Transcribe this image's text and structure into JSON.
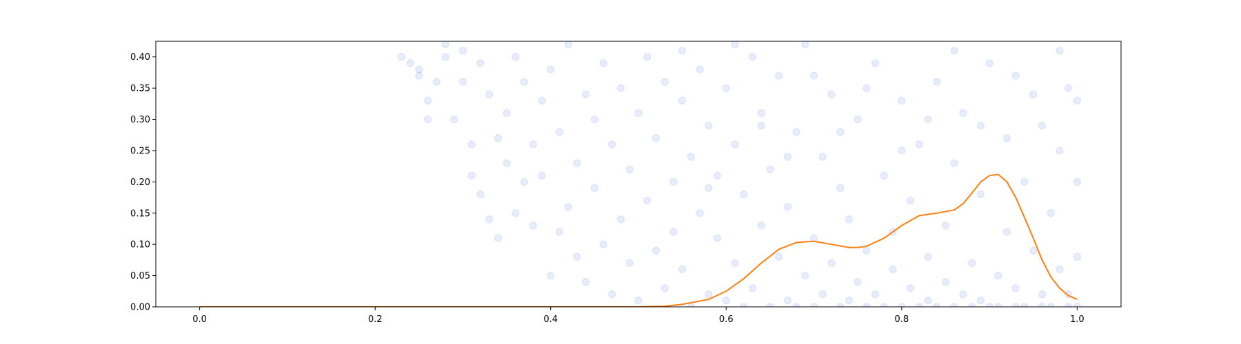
{
  "chart_data": {
    "type": "scatter",
    "title": "",
    "xlabel": "",
    "ylabel": "",
    "xlim": [
      -0.05,
      1.05
    ],
    "ylim": [
      0.0,
      0.425
    ],
    "grid": false,
    "x_ticks": [
      "0.0",
      "0.2",
      "0.4",
      "0.6",
      "0.8",
      "1.0"
    ],
    "y_ticks": [
      "0.00",
      "0.05",
      "0.10",
      "0.15",
      "0.20",
      "0.25",
      "0.30",
      "0.35",
      "0.40"
    ],
    "colors": {
      "points": "#4169e1",
      "line": "#ff7f0e",
      "axes": "#000000"
    },
    "series": [
      {
        "type": "scatter",
        "alpha": 0.12,
        "points": [
          [
            0.23,
            0.4
          ],
          [
            0.24,
            0.39
          ],
          [
            0.25,
            0.38
          ],
          [
            0.25,
            0.37
          ],
          [
            0.26,
            0.33
          ],
          [
            0.26,
            0.3
          ],
          [
            0.27,
            0.36
          ],
          [
            0.28,
            0.4
          ],
          [
            0.28,
            0.42
          ],
          [
            0.29,
            0.3
          ],
          [
            0.3,
            0.36
          ],
          [
            0.3,
            0.41
          ],
          [
            0.31,
            0.26
          ],
          [
            0.31,
            0.21
          ],
          [
            0.32,
            0.39
          ],
          [
            0.32,
            0.18
          ],
          [
            0.33,
            0.14
          ],
          [
            0.33,
            0.34
          ],
          [
            0.34,
            0.27
          ],
          [
            0.34,
            0.11
          ],
          [
            0.35,
            0.31
          ],
          [
            0.35,
            0.23
          ],
          [
            0.36,
            0.4
          ],
          [
            0.36,
            0.15
          ],
          [
            0.37,
            0.2
          ],
          [
            0.37,
            0.36
          ],
          [
            0.38,
            0.26
          ],
          [
            0.38,
            0.13
          ],
          [
            0.39,
            0.33
          ],
          [
            0.39,
            0.21
          ],
          [
            0.4,
            0.38
          ],
          [
            0.4,
            0.05
          ],
          [
            0.41,
            0.12
          ],
          [
            0.41,
            0.28
          ],
          [
            0.42,
            0.16
          ],
          [
            0.42,
            0.42
          ],
          [
            0.43,
            0.23
          ],
          [
            0.43,
            0.08
          ],
          [
            0.44,
            0.34
          ],
          [
            0.44,
            0.04
          ],
          [
            0.45,
            0.19
          ],
          [
            0.45,
            0.3
          ],
          [
            0.46,
            0.1
          ],
          [
            0.46,
            0.39
          ],
          [
            0.47,
            0.26
          ],
          [
            0.47,
            0.02
          ],
          [
            0.48,
            0.14
          ],
          [
            0.48,
            0.35
          ],
          [
            0.49,
            0.22
          ],
          [
            0.49,
            0.07
          ],
          [
            0.5,
            0.31
          ],
          [
            0.5,
            0.01
          ],
          [
            0.51,
            0.17
          ],
          [
            0.51,
            0.4
          ],
          [
            0.52,
            0.09
          ],
          [
            0.52,
            0.27
          ],
          [
            0.53,
            0.03
          ],
          [
            0.53,
            0.36
          ],
          [
            0.54,
            0.2
          ],
          [
            0.54,
            0.12
          ],
          [
            0.55,
            0.33
          ],
          [
            0.55,
            0.06
          ],
          [
            0.56,
            0.24
          ],
          [
            0.56,
            0.0
          ],
          [
            0.57,
            0.15
          ],
          [
            0.57,
            0.38
          ],
          [
            0.58,
            0.02
          ],
          [
            0.58,
            0.29
          ],
          [
            0.59,
            0.11
          ],
          [
            0.59,
            0.21
          ],
          [
            0.6,
            0.35
          ],
          [
            0.6,
            0.01
          ],
          [
            0.61,
            0.07
          ],
          [
            0.61,
            0.26
          ],
          [
            0.62,
            0.0
          ],
          [
            0.62,
            0.18
          ],
          [
            0.63,
            0.4
          ],
          [
            0.63,
            0.03
          ],
          [
            0.64,
            0.13
          ],
          [
            0.64,
            0.31
          ],
          [
            0.65,
            0.0
          ],
          [
            0.65,
            0.22
          ],
          [
            0.66,
            0.08
          ],
          [
            0.66,
            0.37
          ],
          [
            0.67,
            0.01
          ],
          [
            0.67,
            0.16
          ],
          [
            0.68,
            0.28
          ],
          [
            0.68,
            0.0
          ],
          [
            0.69,
            0.05
          ],
          [
            0.69,
            0.42
          ],
          [
            0.7,
            0.11
          ],
          [
            0.7,
            0.0
          ],
          [
            0.71,
            0.24
          ],
          [
            0.71,
            0.02
          ],
          [
            0.72,
            0.34
          ],
          [
            0.72,
            0.07
          ],
          [
            0.73,
            0.0
          ],
          [
            0.73,
            0.19
          ],
          [
            0.74,
            0.14
          ],
          [
            0.74,
            0.01
          ],
          [
            0.75,
            0.3
          ],
          [
            0.75,
            0.04
          ],
          [
            0.76,
            0.0
          ],
          [
            0.76,
            0.09
          ],
          [
            0.77,
            0.39
          ],
          [
            0.77,
            0.02
          ],
          [
            0.78,
            0.21
          ],
          [
            0.78,
            0.0
          ],
          [
            0.79,
            0.12
          ],
          [
            0.79,
            0.06
          ],
          [
            0.8,
            0.33
          ],
          [
            0.8,
            0.0
          ],
          [
            0.81,
            0.03
          ],
          [
            0.81,
            0.17
          ],
          [
            0.82,
            0.0
          ],
          [
            0.82,
            0.26
          ],
          [
            0.83,
            0.08
          ],
          [
            0.83,
            0.01
          ],
          [
            0.84,
            0.36
          ],
          [
            0.84,
            0.0
          ],
          [
            0.85,
            0.13
          ],
          [
            0.85,
            0.04
          ],
          [
            0.86,
            0.0
          ],
          [
            0.86,
            0.23
          ],
          [
            0.87,
            0.02
          ],
          [
            0.87,
            0.31
          ],
          [
            0.88,
            0.0
          ],
          [
            0.88,
            0.07
          ],
          [
            0.89,
            0.18
          ],
          [
            0.89,
            0.01
          ],
          [
            0.9,
            0.0
          ],
          [
            0.9,
            0.39
          ],
          [
            0.91,
            0.05
          ],
          [
            0.91,
            0.0
          ],
          [
            0.92,
            0.12
          ],
          [
            0.92,
            0.27
          ],
          [
            0.93,
            0.0
          ],
          [
            0.93,
            0.03
          ],
          [
            0.94,
            0.2
          ],
          [
            0.94,
            0.0
          ],
          [
            0.95,
            0.09
          ],
          [
            0.95,
            0.34
          ],
          [
            0.96,
            0.0
          ],
          [
            0.96,
            0.02
          ],
          [
            0.97,
            0.15
          ],
          [
            0.97,
            0.0
          ],
          [
            0.98,
            0.06
          ],
          [
            0.98,
            0.25
          ],
          [
            0.99,
            0.0
          ],
          [
            0.99,
            0.02
          ],
          [
            1.0,
            0.33
          ],
          [
            1.0,
            0.08
          ],
          [
            1.0,
            0.0
          ],
          [
            1.0,
            0.2
          ],
          [
            0.99,
            0.35
          ],
          [
            0.98,
            0.41
          ],
          [
            0.96,
            0.29
          ],
          [
            0.93,
            0.37
          ],
          [
            0.89,
            0.29
          ],
          [
            0.86,
            0.41
          ],
          [
            0.83,
            0.3
          ],
          [
            0.8,
            0.25
          ],
          [
            0.76,
            0.35
          ],
          [
            0.73,
            0.28
          ],
          [
            0.7,
            0.37
          ],
          [
            0.67,
            0.24
          ],
          [
            0.64,
            0.29
          ],
          [
            0.61,
            0.42
          ],
          [
            0.58,
            0.19
          ],
          [
            0.55,
            0.41
          ]
        ]
      },
      {
        "type": "line",
        "x": [
          0.0,
          0.1,
          0.2,
          0.3,
          0.4,
          0.45,
          0.5,
          0.53,
          0.55,
          0.58,
          0.6,
          0.62,
          0.64,
          0.66,
          0.68,
          0.7,
          0.72,
          0.74,
          0.75,
          0.76,
          0.78,
          0.8,
          0.82,
          0.84,
          0.86,
          0.87,
          0.88,
          0.89,
          0.9,
          0.91,
          0.92,
          0.93,
          0.94,
          0.95,
          0.96,
          0.97,
          0.98,
          0.99,
          1.0
        ],
        "y": [
          0.0,
          0.0,
          0.0,
          0.0,
          0.0,
          0.0,
          0.0,
          0.001,
          0.004,
          0.012,
          0.025,
          0.045,
          0.07,
          0.092,
          0.103,
          0.105,
          0.1,
          0.095,
          0.095,
          0.097,
          0.11,
          0.13,
          0.146,
          0.15,
          0.155,
          0.165,
          0.182,
          0.2,
          0.21,
          0.212,
          0.2,
          0.175,
          0.143,
          0.11,
          0.075,
          0.048,
          0.03,
          0.018,
          0.012
        ]
      }
    ]
  }
}
